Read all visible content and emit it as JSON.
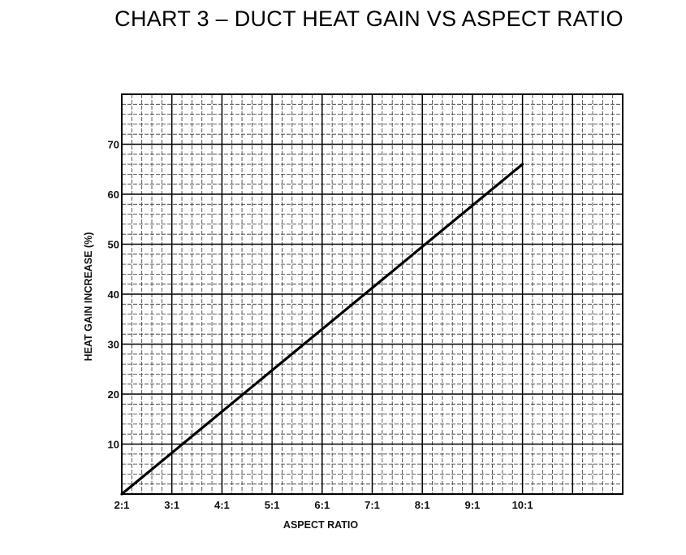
{
  "chart_data": {
    "type": "line",
    "title": "CHART 3 – DUCT HEAT GAIN VS ASPECT RATIO",
    "xlabel": "ASPECT RATIO",
    "ylabel": "HEAT GAIN INCREASE (%)",
    "x_tick_values": [
      2,
      3,
      4,
      5,
      6,
      7,
      8,
      9,
      10
    ],
    "x_tick_labels": [
      "2:1",
      "3:1",
      "4:1",
      "5:1",
      "6:1",
      "7:1",
      "8:1",
      "9:1",
      "10:1"
    ],
    "y_tick_values": [
      10,
      20,
      30,
      40,
      50,
      60,
      70
    ],
    "y_tick_labels": [
      "10",
      "20",
      "30",
      "40",
      "50",
      "60",
      "70"
    ],
    "xlim": [
      2,
      12
    ],
    "ylim": [
      0,
      80
    ],
    "grid": true,
    "series": [
      {
        "x": [
          2,
          10
        ],
        "y": [
          0,
          66
        ]
      }
    ]
  }
}
